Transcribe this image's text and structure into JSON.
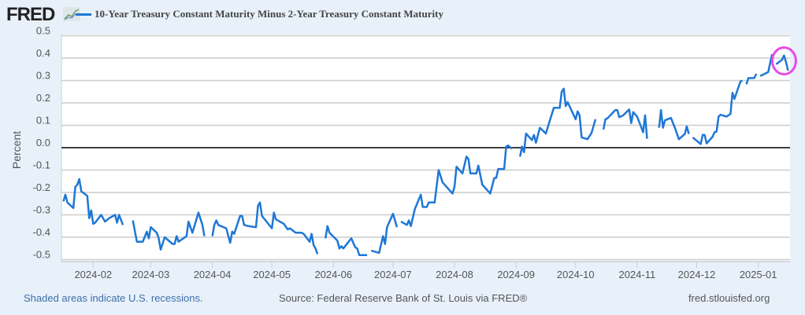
{
  "header": {
    "logo_text": "FRED",
    "legend_label": "10-Year Treasury Constant Maturity Minus 2-Year Treasury Constant Maturity"
  },
  "footer": {
    "recession_note": "Shaded areas indicate U.S. recessions.",
    "source": "Source: Federal Reserve Bank of St. Louis via FRED®",
    "site": "fred.stlouisfed.org"
  },
  "colors": {
    "series": "#1f77d6",
    "highlight_circle": "#e84ae8",
    "zero_line": "#000000",
    "grid": "#cccccc",
    "background": "#e8f1fa"
  },
  "chart_data": {
    "type": "line",
    "title": "",
    "xlabel": "",
    "ylabel": "Percent",
    "ylim": [
      -0.5,
      0.5
    ],
    "xlim": [
      "2024-01-16",
      "2025-01-17"
    ],
    "grid": true,
    "legend_placement": "top",
    "yticks": [
      "0.5",
      "0.4",
      "0.3",
      "0.2",
      "0.1",
      "0.0",
      "-0.1",
      "-0.2",
      "-0.3",
      "-0.4",
      "-0.5"
    ],
    "xticks": [
      "2024-02",
      "2024-03",
      "2024-04",
      "2024-05",
      "2024-06",
      "2024-07",
      "2024-08",
      "2024-09",
      "2024-10",
      "2024-11",
      "2024-12",
      "2025-01"
    ],
    "annotation": "circle around latest values",
    "series": [
      {
        "name": "10-Year Treasury Constant Maturity Minus 2-Year Treasury Constant Maturity",
        "points": [
          [
            "2024-01-17",
            -0.24
          ],
          [
            "2024-01-18",
            -0.21
          ],
          [
            "2024-01-19",
            -0.245
          ],
          [
            "2024-01-22",
            -0.27
          ],
          [
            "2024-01-23",
            -0.175
          ],
          [
            "2024-01-24",
            -0.165
          ],
          [
            "2024-01-25",
            -0.14
          ],
          [
            "2024-01-26",
            -0.195
          ],
          [
            "2024-01-29",
            -0.215
          ],
          [
            "2024-01-30",
            -0.315
          ],
          [
            "2024-01-31",
            -0.28
          ],
          [
            "2024-02-01",
            -0.34
          ],
          [
            "2024-02-02",
            -0.335
          ],
          [
            "2024-02-05",
            -0.3
          ],
          [
            "2024-02-07",
            -0.33
          ],
          [
            "2024-02-09",
            -0.315
          ],
          [
            "2024-02-12",
            -0.3
          ],
          [
            "2024-02-13",
            -0.335
          ],
          [
            "2024-02-14",
            -0.3
          ],
          [
            "2024-02-16",
            -0.345
          ],
          null,
          [
            "2024-02-21",
            -0.325
          ],
          [
            "2024-02-23",
            -0.42
          ],
          [
            "2024-02-26",
            -0.42
          ],
          [
            "2024-02-28",
            -0.375
          ],
          [
            "2024-02-29",
            -0.405
          ],
          [
            "2024-03-01",
            -0.355
          ],
          [
            "2024-03-04",
            -0.38
          ],
          [
            "2024-03-05",
            -0.405
          ],
          [
            "2024-03-06",
            -0.455
          ],
          [
            "2024-03-08",
            -0.4
          ],
          [
            "2024-03-12",
            -0.43
          ],
          [
            "2024-03-13",
            -0.43
          ],
          [
            "2024-03-14",
            -0.395
          ],
          [
            "2024-03-15",
            -0.42
          ],
          [
            "2024-03-19",
            -0.395
          ],
          [
            "2024-03-20",
            -0.33
          ],
          [
            "2024-03-22",
            -0.38
          ],
          [
            "2024-03-25",
            -0.29
          ],
          [
            "2024-03-27",
            -0.345
          ],
          [
            "2024-03-28",
            -0.395
          ],
          null,
          [
            "2024-04-01",
            -0.395
          ],
          [
            "2024-04-02",
            -0.345
          ],
          [
            "2024-04-03",
            -0.325
          ],
          [
            "2024-04-04",
            -0.345
          ],
          [
            "2024-04-08",
            -0.36
          ],
          [
            "2024-04-10",
            -0.425
          ],
          [
            "2024-04-11",
            -0.375
          ],
          [
            "2024-04-12",
            -0.385
          ],
          [
            "2024-04-15",
            -0.305
          ],
          [
            "2024-04-16",
            -0.305
          ],
          [
            "2024-04-17",
            -0.345
          ],
          [
            "2024-04-19",
            -0.35
          ],
          [
            "2024-04-23",
            -0.355
          ],
          [
            "2024-04-24",
            -0.26
          ],
          [
            "2024-04-25",
            -0.245
          ],
          [
            "2024-04-26",
            -0.305
          ],
          [
            "2024-05-01",
            -0.36
          ],
          [
            "2024-05-02",
            -0.29
          ],
          [
            "2024-05-03",
            -0.32
          ],
          [
            "2024-05-07",
            -0.34
          ],
          [
            "2024-05-09",
            -0.365
          ],
          [
            "2024-05-10",
            -0.36
          ],
          [
            "2024-05-13",
            -0.38
          ],
          [
            "2024-05-16",
            -0.38
          ],
          [
            "2024-05-17",
            -0.385
          ],
          [
            "2024-05-20",
            -0.42
          ],
          [
            "2024-05-21",
            -0.385
          ],
          [
            "2024-05-22",
            -0.435
          ],
          [
            "2024-05-23",
            -0.45
          ],
          [
            "2024-05-24",
            -0.475
          ],
          null,
          [
            "2024-05-28",
            -0.405
          ],
          [
            "2024-05-29",
            -0.35
          ],
          [
            "2024-05-30",
            -0.38
          ],
          [
            "2024-06-03",
            -0.415
          ],
          [
            "2024-06-04",
            -0.45
          ],
          [
            "2024-06-05",
            -0.44
          ],
          [
            "2024-06-06",
            -0.45
          ],
          [
            "2024-06-10",
            -0.405
          ],
          [
            "2024-06-12",
            -0.445
          ],
          [
            "2024-06-13",
            -0.45
          ],
          [
            "2024-06-14",
            -0.48
          ],
          [
            "2024-06-18",
            -0.48
          ],
          null,
          [
            "2024-06-20",
            -0.46
          ],
          [
            "2024-06-24",
            -0.47
          ],
          [
            "2024-06-26",
            -0.395
          ],
          [
            "2024-06-27",
            -0.43
          ],
          [
            "2024-06-28",
            -0.355
          ],
          [
            "2024-07-01",
            -0.295
          ],
          [
            "2024-07-03",
            -0.355
          ],
          null,
          [
            "2024-07-05",
            -0.33
          ],
          [
            "2024-07-08",
            -0.345
          ],
          [
            "2024-07-09",
            -0.325
          ],
          [
            "2024-07-10",
            -0.35
          ],
          [
            "2024-07-12",
            -0.275
          ],
          [
            "2024-07-15",
            -0.21
          ],
          [
            "2024-07-16",
            -0.265
          ],
          [
            "2024-07-18",
            -0.265
          ],
          [
            "2024-07-19",
            -0.245
          ],
          [
            "2024-07-22",
            -0.245
          ],
          [
            "2024-07-24",
            -0.1
          ],
          [
            "2024-07-26",
            -0.155
          ],
          [
            "2024-07-31",
            -0.205
          ],
          [
            "2024-08-01",
            -0.175
          ],
          [
            "2024-08-02",
            -0.085
          ],
          [
            "2024-08-05",
            -0.115
          ],
          [
            "2024-08-07",
            -0.04
          ],
          [
            "2024-08-08",
            -0.05
          ],
          [
            "2024-08-09",
            -0.115
          ],
          [
            "2024-08-12",
            -0.115
          ],
          [
            "2024-08-13",
            -0.08
          ],
          [
            "2024-08-15",
            -0.165
          ],
          [
            "2024-08-19",
            -0.205
          ],
          [
            "2024-08-21",
            -0.135
          ],
          [
            "2024-08-22",
            -0.135
          ],
          [
            "2024-08-23",
            -0.095
          ],
          [
            "2024-08-26",
            -0.095
          ],
          [
            "2024-08-27",
            0.005
          ],
          [
            "2024-08-28",
            0.01
          ],
          [
            "2024-08-30",
            -0.005
          ],
          null,
          [
            "2024-09-03",
            -0.04
          ],
          [
            "2024-09-04",
            0.005
          ],
          [
            "2024-09-05",
            -0.02
          ],
          [
            "2024-09-06",
            0.063
          ],
          [
            "2024-09-09",
            0.034
          ],
          [
            "2024-09-10",
            0.057
          ],
          [
            "2024-09-11",
            0.022
          ],
          [
            "2024-09-13",
            0.089
          ],
          [
            "2024-09-16",
            0.063
          ],
          [
            "2024-09-17",
            0.092
          ],
          [
            "2024-09-20",
            0.178
          ],
          [
            "2024-09-23",
            0.178
          ],
          [
            "2024-09-24",
            0.25
          ],
          [
            "2024-09-25",
            0.264
          ],
          [
            "2024-09-26",
            0.186
          ],
          [
            "2024-09-27",
            0.203
          ],
          [
            "2024-10-01",
            0.127
          ],
          [
            "2024-10-02",
            0.162
          ],
          [
            "2024-10-03",
            0.145
          ],
          [
            "2024-10-04",
            0.046
          ],
          [
            "2024-10-07",
            0.038
          ],
          [
            "2024-10-09",
            0.066
          ],
          [
            "2024-10-11",
            0.127
          ],
          null,
          [
            "2024-10-15",
            0.081
          ],
          [
            "2024-10-16",
            0.127
          ],
          [
            "2024-10-17",
            0.131
          ],
          [
            "2024-10-21",
            0.168
          ],
          [
            "2024-10-22",
            0.168
          ],
          [
            "2024-10-23",
            0.136
          ],
          [
            "2024-10-25",
            0.145
          ],
          [
            "2024-10-28",
            0.171
          ],
          [
            "2024-10-29",
            0.11
          ],
          [
            "2024-10-30",
            0.159
          ],
          [
            "2024-11-01",
            0.139
          ],
          [
            "2024-11-04",
            0.069
          ],
          [
            "2024-11-05",
            0.145
          ],
          [
            "2024-11-06",
            0.04
          ],
          null,
          [
            "2024-11-12",
            0.089
          ],
          [
            "2024-11-13",
            0.168
          ],
          [
            "2024-11-14",
            0.089
          ],
          [
            "2024-11-15",
            0.122
          ],
          [
            "2024-11-18",
            0.133
          ],
          [
            "2024-11-20",
            0.089
          ],
          [
            "2024-11-22",
            0.038
          ],
          [
            "2024-11-25",
            0.061
          ],
          [
            "2024-11-26",
            0.095
          ],
          [
            "2024-11-27",
            0.061
          ],
          null,
          [
            "2024-11-29",
            0.046
          ],
          [
            "2024-12-03",
            0.016
          ],
          [
            "2024-12-04",
            0.057
          ],
          [
            "2024-12-05",
            0.057
          ],
          [
            "2024-12-06",
            0.019
          ],
          [
            "2024-12-09",
            0.049
          ],
          [
            "2024-12-10",
            0.069
          ],
          [
            "2024-12-11",
            0.072
          ],
          [
            "2024-12-12",
            0.139
          ],
          [
            "2024-12-13",
            0.147
          ],
          [
            "2024-12-16",
            0.139
          ],
          [
            "2024-12-18",
            0.151
          ],
          [
            "2024-12-19",
            0.245
          ],
          [
            "2024-12-20",
            0.218
          ],
          [
            "2024-12-23",
            0.295
          ],
          [
            "2024-12-24",
            0.3
          ],
          null,
          [
            "2024-12-26",
            0.283
          ],
          [
            "2024-12-27",
            0.311
          ],
          [
            "2024-12-30",
            0.311
          ],
          [
            "2024-12-31",
            0.33
          ],
          null,
          [
            "2025-01-02",
            0.32
          ],
          [
            "2025-01-06",
            0.338
          ],
          [
            "2025-01-07",
            0.379
          ],
          [
            "2025-01-08",
            0.418
          ],
          null,
          [
            "2025-01-10",
            0.373
          ],
          [
            "2025-01-13",
            0.393
          ],
          [
            "2025-01-14",
            0.412
          ],
          [
            "2025-01-15",
            0.381
          ],
          [
            "2025-01-16",
            0.344
          ]
        ]
      }
    ]
  }
}
